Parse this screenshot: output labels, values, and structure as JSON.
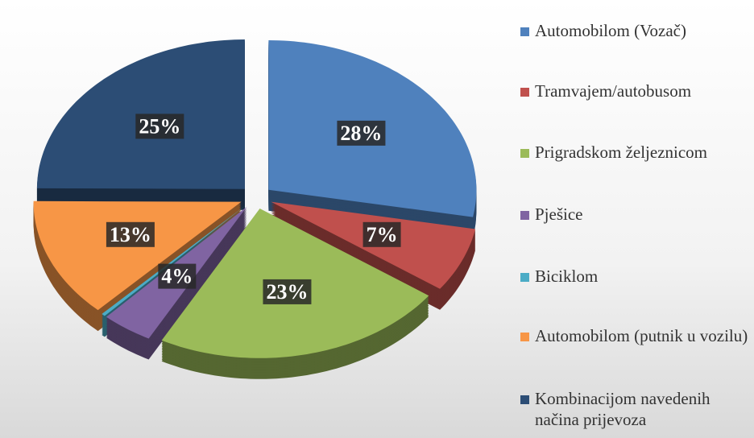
{
  "chart_data": {
    "type": "pie",
    "categories": [
      "Automobilom (Vozač)",
      "Tramvajem/autobusom",
      "Prigradskom željeznicom",
      "Pješice",
      "Biciklom",
      "Automobilom (putnik u vozilu)",
      "Kombinacijom navedenih načina prijevoza"
    ],
    "values": [
      28,
      7,
      23,
      4,
      0.3,
      13,
      25
    ],
    "value_labels": [
      "28%",
      "7%",
      "23%",
      "4%",
      null,
      "13%",
      "25%"
    ],
    "colors": [
      "#4f81bd",
      "#c0504d",
      "#9bbb59",
      "#8064a2",
      "#4bacc6",
      "#f79646",
      "#2c4d75"
    ],
    "legend": "right"
  }
}
